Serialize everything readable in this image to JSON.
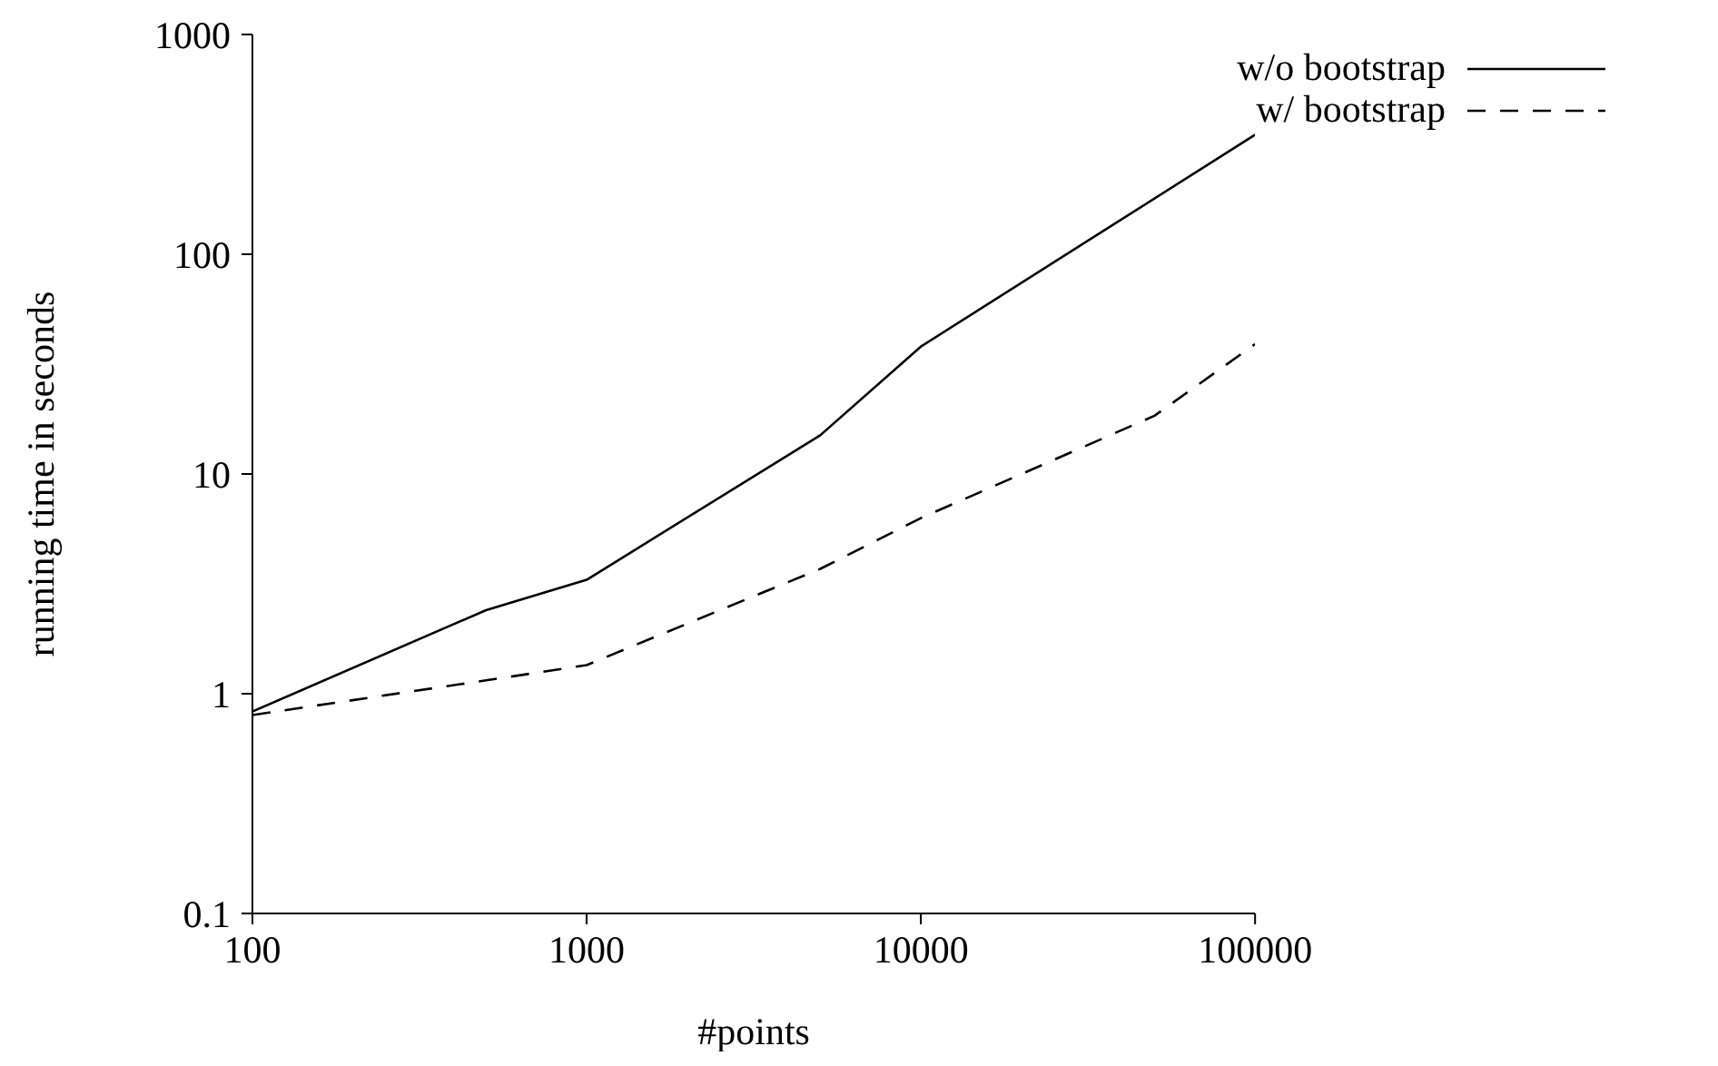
{
  "chart_data": {
    "type": "line",
    "xlabel": "#points",
    "ylabel": "running time in seconds",
    "log": "xy",
    "marker": "none",
    "legend": "top right",
    "grid": false,
    "xlim": [
      100,
      100000
    ],
    "xticks": [
      100,
      1000,
      10000,
      100000
    ],
    "ylim": [
      0.1,
      1000
    ],
    "yticks": [
      0.1,
      1,
      10,
      100,
      1000
    ],
    "series": [
      {
        "name": "w/o bootstrap",
        "color": "#000000",
        "line_style": "solid",
        "x": [
          100,
          500,
          1000,
          5000,
          10000,
          100000
        ],
        "values": [
          0.83,
          2.4,
          3.3,
          15,
          38,
          350
        ]
      },
      {
        "name": "w/ bootstrap",
        "color": "#000000",
        "line_style": "dashed",
        "x": [
          100,
          500,
          1000,
          5000,
          10000,
          50000,
          100000
        ],
        "values": [
          0.8,
          1.15,
          1.35,
          3.7,
          6.3,
          18.4,
          39
        ]
      }
    ]
  }
}
